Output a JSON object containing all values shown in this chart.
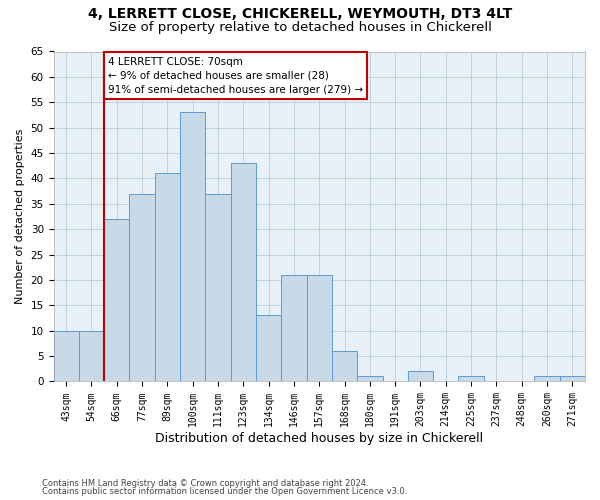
{
  "title1": "4, LERRETT CLOSE, CHICKERELL, WEYMOUTH, DT3 4LT",
  "title2": "Size of property relative to detached houses in Chickerell",
  "xlabel": "Distribution of detached houses by size in Chickerell",
  "ylabel": "Number of detached properties",
  "footer1": "Contains HM Land Registry data © Crown copyright and database right 2024.",
  "footer2": "Contains public sector information licensed under the Open Government Licence v3.0.",
  "annotation_line1": "4 LERRETT CLOSE: 70sqm",
  "annotation_line2": "← 9% of detached houses are smaller (28)",
  "annotation_line3": "91% of semi-detached houses are larger (279) →",
  "bar_labels": [
    "43sqm",
    "54sqm",
    "66sqm",
    "77sqm",
    "89sqm",
    "100sqm",
    "111sqm",
    "123sqm",
    "134sqm",
    "146sqm",
    "157sqm",
    "168sqm",
    "180sqm",
    "191sqm",
    "203sqm",
    "214sqm",
    "225sqm",
    "237sqm",
    "248sqm",
    "260sqm",
    "271sqm"
  ],
  "bar_values": [
    10,
    10,
    32,
    37,
    41,
    53,
    37,
    43,
    13,
    21,
    21,
    6,
    1,
    0,
    2,
    0,
    1,
    0,
    0,
    1,
    1
  ],
  "bar_color": "#c8d9e8",
  "bar_edge_color": "#5b9bd5",
  "vline_color": "#c00000",
  "annotation_box_color": "#c00000",
  "ylim": [
    0,
    65
  ],
  "yticks": [
    0,
    5,
    10,
    15,
    20,
    25,
    30,
    35,
    40,
    45,
    50,
    55,
    60,
    65
  ],
  "grid_color": "#b8cfe0",
  "background_color": "#e8f0f8",
  "title1_fontsize": 10,
  "title2_fontsize": 9.5,
  "ylabel_fontsize": 8,
  "xlabel_fontsize": 9,
  "bar_width": 1.0,
  "vline_bar_index": 1.5
}
